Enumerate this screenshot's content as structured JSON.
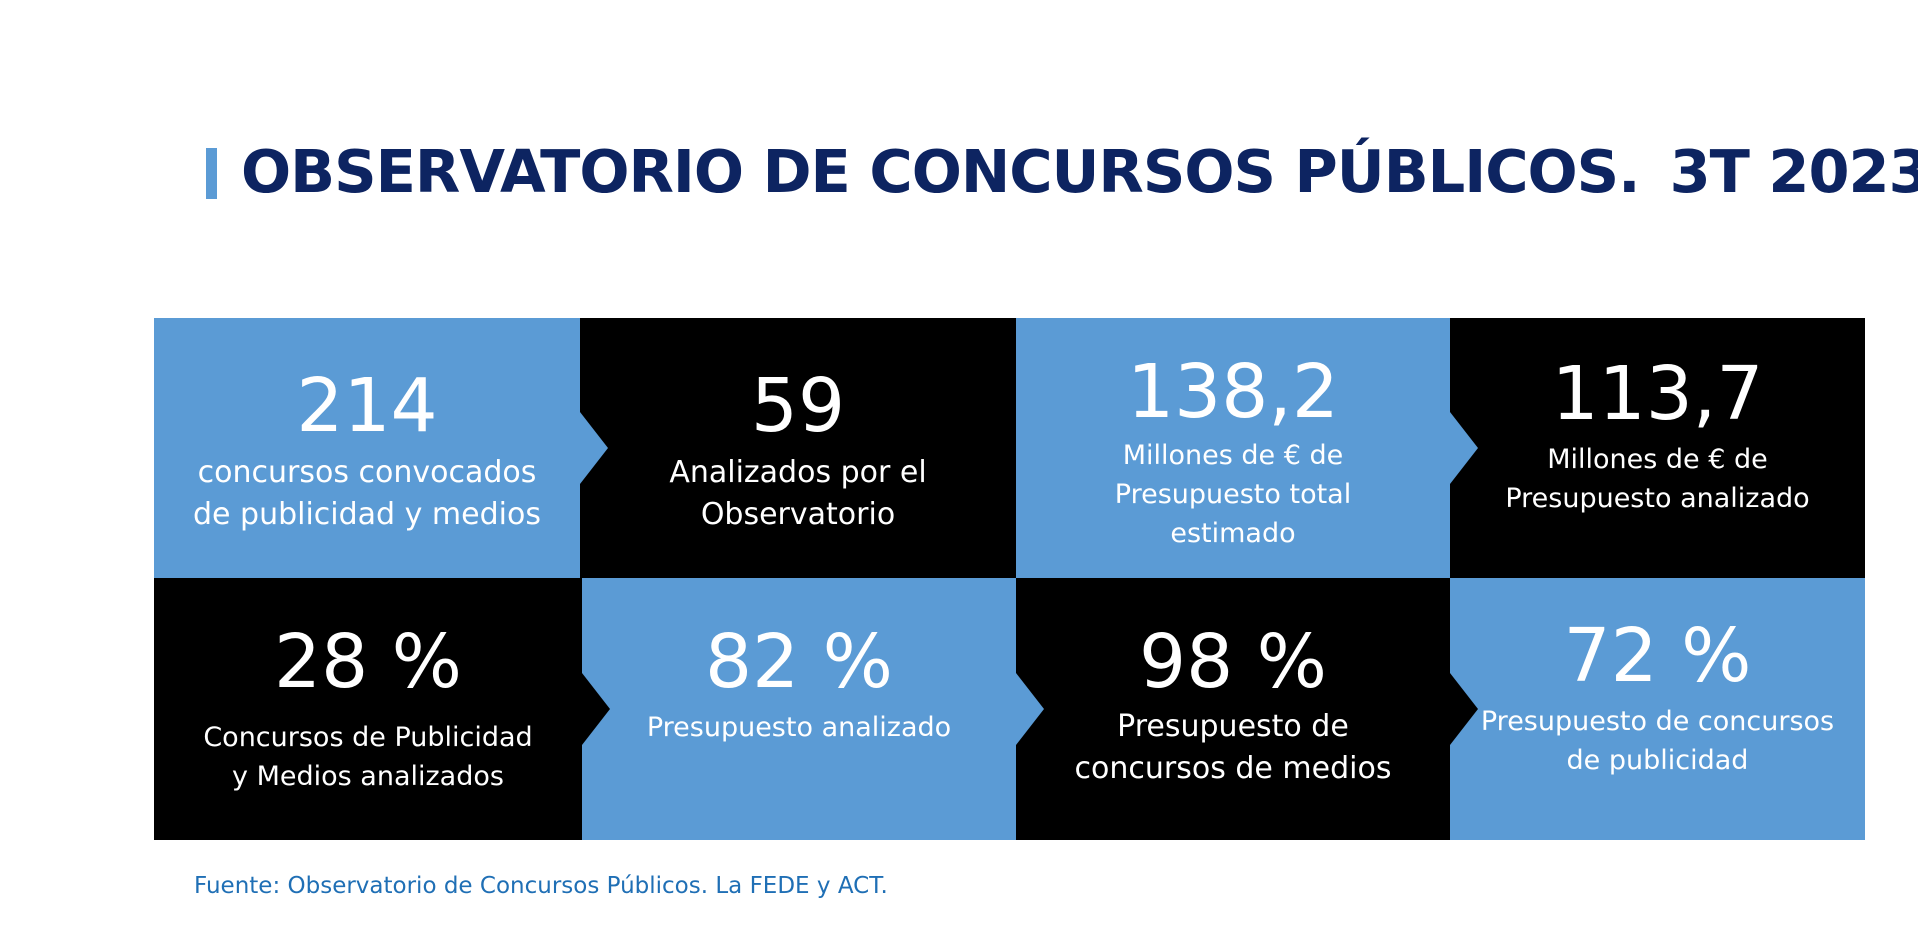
{
  "title": {
    "main": "OBSERVATORIO DE CONCURSOS PÚBLICOS.",
    "period": "3T 2023"
  },
  "colors": {
    "accent_blue": "#5b9bd5",
    "title_navy": "#0d2461",
    "source_blue": "#1f6fb5",
    "tile_black": "#000000"
  },
  "tiles": [
    {
      "value": "214",
      "label_line1": "concursos convocados",
      "label_line2": "de publicidad y medios",
      "label_line3": ""
    },
    {
      "value": "59",
      "label_line1": "Analizados por el",
      "label_line2": "Observatorio",
      "label_line3": ""
    },
    {
      "value": "138,2",
      "label_line1": "Millones de € de",
      "label_line2": "Presupuesto total",
      "label_line3": "estimado"
    },
    {
      "value": "113,7",
      "label_line1": "Millones de € de",
      "label_line2": "Presupuesto analizado",
      "label_line3": ""
    },
    {
      "value": "28 %",
      "label_line1": "Concursos de Publicidad",
      "label_line2": "y Medios analizados",
      "label_line3": ""
    },
    {
      "value": "82 %",
      "label_line1": "Presupuesto analizado",
      "label_line2": "",
      "label_line3": ""
    },
    {
      "value": "98 %",
      "label_line1": "Presupuesto de",
      "label_line2": "concursos de medios",
      "label_line3": ""
    },
    {
      "value": "72 %",
      "label_line1": "Presupuesto de concursos",
      "label_line2": "de publicidad",
      "label_line3": ""
    }
  ],
  "source": "Fuente: Observatorio de Concursos Públicos. La FEDE y ACT."
}
